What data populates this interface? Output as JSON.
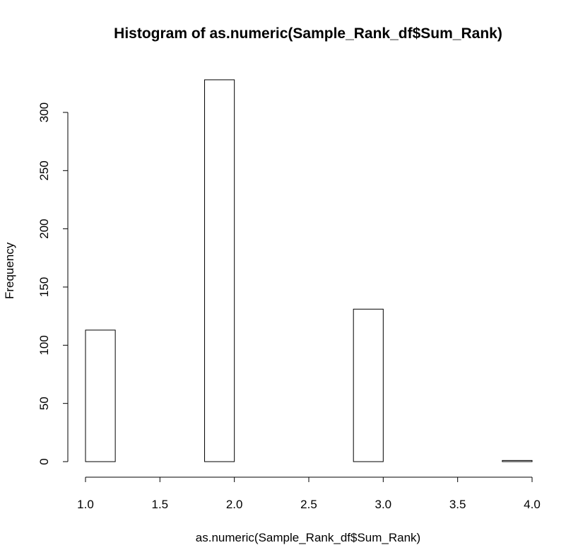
{
  "chart_data": {
    "type": "bar",
    "title": "Histogram of as.numeric(Sample_Rank_df$Sum_Rank)",
    "xlabel": "as.numeric(Sample_Rank_df$Sum_Rank)",
    "ylabel": "Frequency",
    "xlim": [
      1.0,
      4.0
    ],
    "ylim": [
      0,
      300
    ],
    "xticks": [
      "1.0",
      "1.5",
      "2.0",
      "2.5",
      "3.0",
      "3.5",
      "4.0"
    ],
    "yticks": [
      "0",
      "50",
      "100",
      "150",
      "200",
      "250",
      "300"
    ],
    "bin_edges": [
      1.0,
      1.2,
      1.4,
      1.6,
      1.8,
      2.0,
      2.2,
      2.4,
      2.6,
      2.8,
      3.0,
      3.2,
      3.4,
      3.6,
      3.8,
      4.0
    ],
    "values": [
      113,
      0,
      0,
      0,
      328,
      0,
      0,
      0,
      0,
      131,
      0,
      0,
      0,
      0,
      1
    ],
    "grid": false
  }
}
